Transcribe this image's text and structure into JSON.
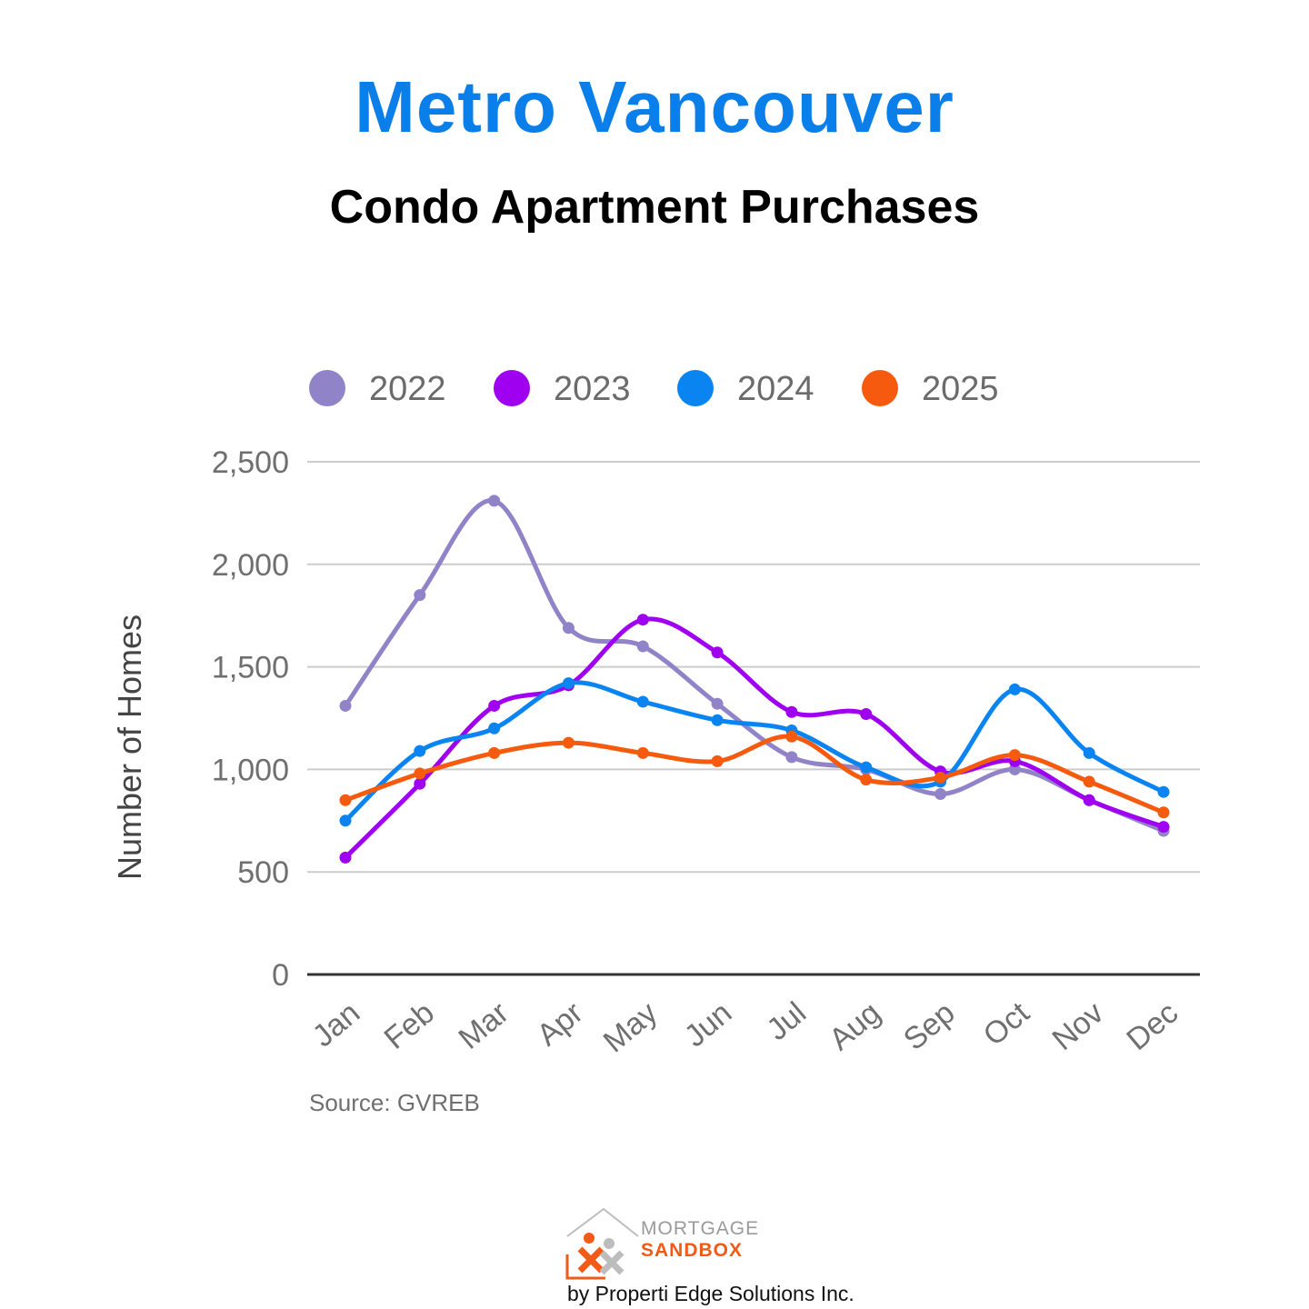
{
  "chart_data": {
    "type": "line",
    "title": "Metro Vancouver",
    "subtitle": "Condo Apartment Purchases",
    "ylabel": "Number of Homes",
    "xlabel": "",
    "categories": [
      "Jan",
      "Feb",
      "Mar",
      "Apr",
      "May",
      "Jun",
      "Jul",
      "Aug",
      "Sep",
      "Oct",
      "Nov",
      "Dec"
    ],
    "ylim": [
      0,
      2500
    ],
    "yticks": [
      "0",
      "500",
      "1,000",
      "1,500",
      "2,000",
      "2,500"
    ],
    "ytick_values": [
      0,
      500,
      1000,
      1500,
      2000,
      2500
    ],
    "grid": true,
    "legend_position": "top",
    "series": [
      {
        "name": "2022",
        "color": "#9183c8",
        "values": [
          1310,
          1850,
          2310,
          1690,
          1600,
          1320,
          1060,
          1000,
          880,
          1000,
          850,
          700
        ]
      },
      {
        "name": "2023",
        "color": "#a000f0",
        "values": [
          570,
          930,
          1310,
          1410,
          1730,
          1570,
          1280,
          1270,
          990,
          1040,
          850,
          720
        ]
      },
      {
        "name": "2024",
        "color": "#0a84f0",
        "values": [
          750,
          1090,
          1200,
          1420,
          1330,
          1240,
          1190,
          1010,
          940,
          1390,
          1080,
          890
        ]
      },
      {
        "name": "2025",
        "color": "#f55a0e",
        "values": [
          850,
          980,
          1080,
          1130,
          1080,
          1040,
          1160,
          950,
          960,
          1070,
          940,
          790
        ]
      }
    ],
    "source": "Source: GVREB"
  },
  "logo": {
    "line1": "MORTGAGE",
    "line2": "SANDBOX",
    "byline": "by Properti Edge Solutions Inc."
  }
}
